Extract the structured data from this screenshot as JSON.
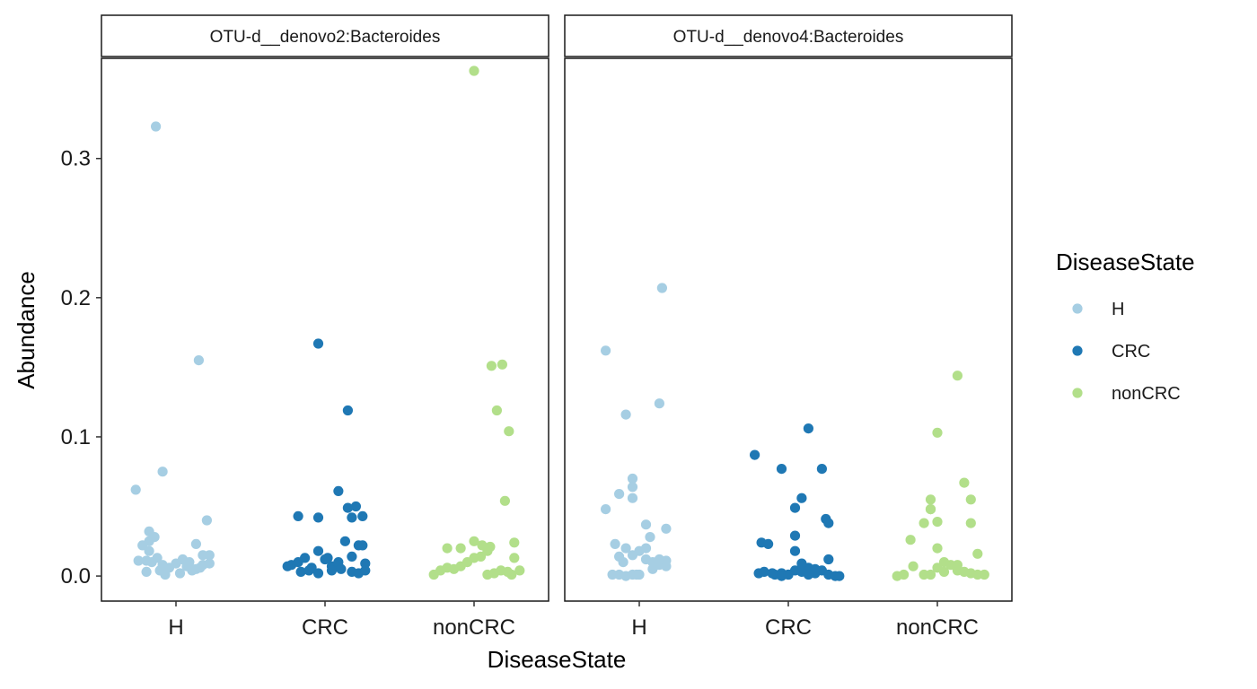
{
  "chart_data": {
    "type": "scatter",
    "title": "",
    "xlabel": "DiseaseState",
    "ylabel": "Abundance",
    "categories": [
      "H",
      "CRC",
      "nonCRC"
    ],
    "ylim": [
      -0.018,
      0.372
    ],
    "yticks": [
      0.0,
      0.1,
      0.2,
      0.3
    ],
    "ytick_labels": [
      "0.0",
      "0.1",
      "0.2",
      "0.3"
    ],
    "grid": false,
    "legend": {
      "title": "DiseaseState",
      "placement": "right",
      "entries": [
        {
          "label": "H",
          "color": "#a6cee3"
        },
        {
          "label": "CRC",
          "color": "#1f78b4"
        },
        {
          "label": "nonCRC",
          "color": "#b2df8a"
        }
      ]
    },
    "panels": [
      {
        "strip": "OTU-d__denovo2:Bacteroides",
        "series": [
          {
            "category": "H",
            "points": [
              [
                -0.3,
                0.062
              ],
              [
                -0.1,
                0.075
              ],
              [
                -0.15,
                0.323
              ],
              [
                0.17,
                0.155
              ],
              [
                -0.2,
                0.032
              ],
              [
                0.23,
                0.04
              ],
              [
                -0.28,
                0.011
              ],
              [
                -0.22,
                0.011
              ],
              [
                -0.18,
                0.01
              ],
              [
                -0.14,
                0.013
              ],
              [
                -0.1,
                0.008
              ],
              [
                -0.05,
                0.006
              ],
              [
                0.0,
                0.009
              ],
              [
                0.05,
                0.012
              ],
              [
                0.1,
                0.01
              ],
              [
                0.15,
                0.005
              ],
              [
                0.2,
                0.008
              ],
              [
                0.25,
                0.009
              ],
              [
                -0.25,
                0.022
              ],
              [
                -0.2,
                0.025
              ],
              [
                -0.16,
                0.028
              ],
              [
                -0.2,
                0.018
              ],
              [
                0.15,
                0.023
              ],
              [
                0.2,
                0.015
              ],
              [
                0.25,
                0.015
              ],
              [
                -0.22,
                0.003
              ],
              [
                -0.08,
                0.001
              ],
              [
                0.03,
                0.002
              ],
              [
                0.12,
                0.004
              ],
              [
                0.18,
                0.006
              ],
              [
                -0.12,
                0.004
              ],
              [
                0.08,
                0.007
              ]
            ]
          },
          {
            "category": "CRC",
            "points": [
              [
                -0.05,
                0.167
              ],
              [
                0.17,
                0.119
              ],
              [
                0.1,
                0.061
              ],
              [
                -0.2,
                0.043
              ],
              [
                -0.05,
                0.042
              ],
              [
                0.17,
                0.049
              ],
              [
                0.23,
                0.05
              ],
              [
                0.28,
                0.043
              ],
              [
                0.2,
                0.042
              ],
              [
                -0.25,
                0.008
              ],
              [
                -0.2,
                0.01
              ],
              [
                -0.15,
                0.013
              ],
              [
                -0.1,
                0.006
              ],
              [
                -0.05,
                0.018
              ],
              [
                0.0,
                0.012
              ],
              [
                0.05,
                0.007
              ],
              [
                0.1,
                0.01
              ],
              [
                0.15,
                0.025
              ],
              [
                0.2,
                0.014
              ],
              [
                0.25,
                0.022
              ],
              [
                0.3,
                0.009
              ],
              [
                -0.18,
                0.003
              ],
              [
                -0.12,
                0.004
              ],
              [
                -0.05,
                0.002
              ],
              [
                0.05,
                0.004
              ],
              [
                0.12,
                0.005
              ],
              [
                0.2,
                0.003
              ],
              [
                0.25,
                0.002
              ],
              [
                0.3,
                0.004
              ],
              [
                -0.28,
                0.007
              ],
              [
                0.02,
                0.013
              ],
              [
                0.28,
                0.022
              ]
            ]
          },
          {
            "category": "nonCRC",
            "points": [
              [
                0.0,
                0.363
              ],
              [
                0.13,
                0.151
              ],
              [
                0.21,
                0.152
              ],
              [
                0.17,
                0.119
              ],
              [
                0.26,
                0.104
              ],
              [
                0.23,
                0.054
              ],
              [
                -0.1,
                0.02
              ],
              [
                0.0,
                0.025
              ],
              [
                0.12,
                0.021
              ],
              [
                0.3,
                0.024
              ],
              [
                -0.3,
                0.001
              ],
              [
                -0.25,
                0.004
              ],
              [
                -0.2,
                0.006
              ],
              [
                -0.15,
                0.005
              ],
              [
                -0.1,
                0.007
              ],
              [
                -0.05,
                0.01
              ],
              [
                0.0,
                0.013
              ],
              [
                0.05,
                0.014
              ],
              [
                0.1,
                0.018
              ],
              [
                0.15,
                0.002
              ],
              [
                0.2,
                0.004
              ],
              [
                0.25,
                0.003
              ],
              [
                0.3,
                0.013
              ],
              [
                -0.2,
                0.02
              ],
              [
                0.1,
                0.001
              ],
              [
                0.28,
                0.001
              ],
              [
                0.06,
                0.022
              ],
              [
                0.34,
                0.004
              ]
            ]
          }
        ]
      },
      {
        "strip": "OTU-d__denovo4:Bacteroides",
        "series": [
          {
            "category": "H",
            "points": [
              [
                0.17,
                0.207
              ],
              [
                -0.25,
                0.162
              ],
              [
                -0.1,
                0.116
              ],
              [
                0.15,
                0.124
              ],
              [
                -0.25,
                0.048
              ],
              [
                -0.15,
                0.059
              ],
              [
                -0.05,
                0.07
              ],
              [
                -0.05,
                0.064
              ],
              [
                -0.05,
                0.056
              ],
              [
                0.05,
                0.037
              ],
              [
                0.2,
                0.034
              ],
              [
                0.08,
                0.028
              ],
              [
                -0.18,
                0.023
              ],
              [
                -0.1,
                0.02
              ],
              [
                -0.05,
                0.015
              ],
              [
                0.0,
                0.018
              ],
              [
                0.05,
                0.012
              ],
              [
                0.1,
                0.01
              ],
              [
                0.15,
                0.008
              ],
              [
                0.2,
                0.007
              ],
              [
                -0.15,
                0.014
              ],
              [
                -0.12,
                0.01
              ],
              [
                -0.2,
                0.001
              ],
              [
                -0.15,
                0.001
              ],
              [
                -0.1,
                0.0
              ],
              [
                -0.05,
                0.001
              ],
              [
                0.0,
                0.001
              ],
              [
                0.1,
                0.005
              ],
              [
                0.2,
                0.011
              ],
              [
                0.15,
                0.012
              ],
              [
                0.05,
                0.02
              ],
              [
                -0.02,
                0.001
              ]
            ]
          },
          {
            "category": "CRC",
            "points": [
              [
                -0.25,
                0.087
              ],
              [
                0.15,
                0.106
              ],
              [
                -0.05,
                0.077
              ],
              [
                0.25,
                0.077
              ],
              [
                0.1,
                0.056
              ],
              [
                0.05,
                0.049
              ],
              [
                0.28,
                0.041
              ],
              [
                0.3,
                0.038
              ],
              [
                -0.2,
                0.024
              ],
              [
                -0.15,
                0.023
              ],
              [
                0.05,
                0.029
              ],
              [
                0.05,
                0.018
              ],
              [
                0.3,
                0.012
              ],
              [
                -0.22,
                0.002
              ],
              [
                -0.18,
                0.003
              ],
              [
                -0.1,
                0.001
              ],
              [
                -0.05,
                0.002
              ],
              [
                0.0,
                0.001
              ],
              [
                0.05,
                0.004
              ],
              [
                0.1,
                0.003
              ],
              [
                0.15,
                0.006
              ],
              [
                0.2,
                0.002
              ],
              [
                0.25,
                0.004
              ],
              [
                0.3,
                0.001
              ],
              [
                0.35,
                0.0
              ],
              [
                0.1,
                0.009
              ],
              [
                0.2,
                0.005
              ],
              [
                -0.05,
                0.0
              ],
              [
                0.15,
                0.001
              ],
              [
                0.38,
                0.0
              ],
              [
                0.0,
                0.001
              ],
              [
                -0.12,
                0.002
              ]
            ]
          },
          {
            "category": "nonCRC",
            "points": [
              [
                0.15,
                0.144
              ],
              [
                0.0,
                0.103
              ],
              [
                0.2,
                0.067
              ],
              [
                -0.05,
                0.055
              ],
              [
                0.25,
                0.055
              ],
              [
                -0.05,
                0.048
              ],
              [
                -0.1,
                0.038
              ],
              [
                0.0,
                0.039
              ],
              [
                0.25,
                0.038
              ],
              [
                -0.2,
                0.026
              ],
              [
                0.0,
                0.02
              ],
              [
                0.3,
                0.016
              ],
              [
                -0.3,
                0.0
              ],
              [
                -0.25,
                0.001
              ],
              [
                -0.18,
                0.007
              ],
              [
                -0.1,
                0.001
              ],
              [
                -0.05,
                0.001
              ],
              [
                0.0,
                0.006
              ],
              [
                0.05,
                0.01
              ],
              [
                0.1,
                0.008
              ],
              [
                0.15,
                0.004
              ],
              [
                0.2,
                0.003
              ],
              [
                0.25,
                0.002
              ],
              [
                0.3,
                0.001
              ],
              [
                0.35,
                0.001
              ],
              [
                0.05,
                0.003
              ],
              [
                0.15,
                0.008
              ],
              [
                -0.05,
                0.048
              ]
            ]
          }
        ]
      }
    ]
  }
}
